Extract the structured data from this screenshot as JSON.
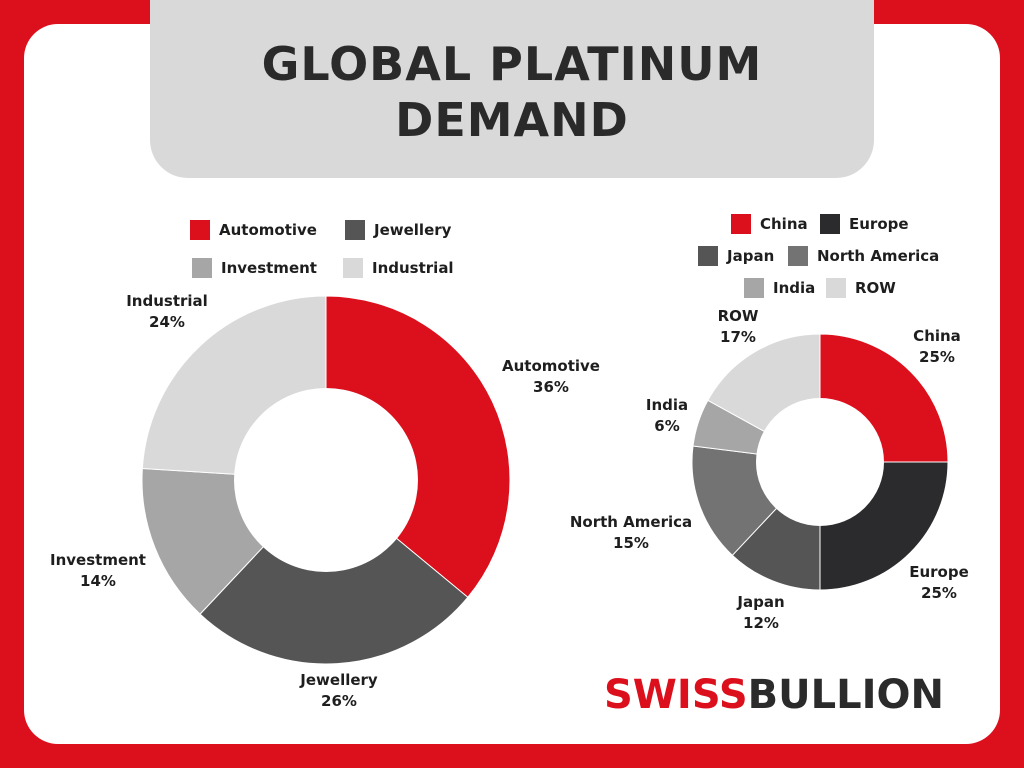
{
  "title_line1": "GLOBAL PLATINUM",
  "title_line2": "DEMAND",
  "colors": {
    "frame": "#dc0f1c",
    "title_bg": "#d9d9d9"
  },
  "logo": {
    "part1": "SWISS",
    "part2": "BULLION"
  },
  "chart_data": [
    {
      "type": "pie",
      "variant": "donut",
      "legend": [
        "Automotive",
        "Jewellery",
        "Investment",
        "Industrial"
      ],
      "slices": [
        {
          "label": "Automotive",
          "value": 36,
          "value_label": "36%",
          "color": "#dc0f1c"
        },
        {
          "label": "Jewellery",
          "value": 26,
          "value_label": "26%",
          "color": "#555555"
        },
        {
          "label": "Investment",
          "value": 14,
          "value_label": "14%",
          "color": "#a6a6a6"
        },
        {
          "label": "Industrial",
          "value": 24,
          "value_label": "24%",
          "color": "#d9d9d9"
        }
      ]
    },
    {
      "type": "pie",
      "variant": "donut",
      "legend": [
        "China",
        "Europe",
        "Japan",
        "North America",
        "India",
        "ROW"
      ],
      "slices": [
        {
          "label": "China",
          "value": 25,
          "value_label": "25%",
          "color": "#dc0f1c"
        },
        {
          "label": "Europe",
          "value": 25,
          "value_label": "25%",
          "color": "#2b2b2d"
        },
        {
          "label": "Japan",
          "value": 12,
          "value_label": "12%",
          "color": "#555555"
        },
        {
          "label": "North America",
          "value": 15,
          "value_label": "15%",
          "color": "#737373"
        },
        {
          "label": "India",
          "value": 6,
          "value_label": "6%",
          "color": "#a6a6a6"
        },
        {
          "label": "ROW",
          "value": 17,
          "value_label": "17%",
          "color": "#d9d9d9"
        }
      ]
    }
  ]
}
